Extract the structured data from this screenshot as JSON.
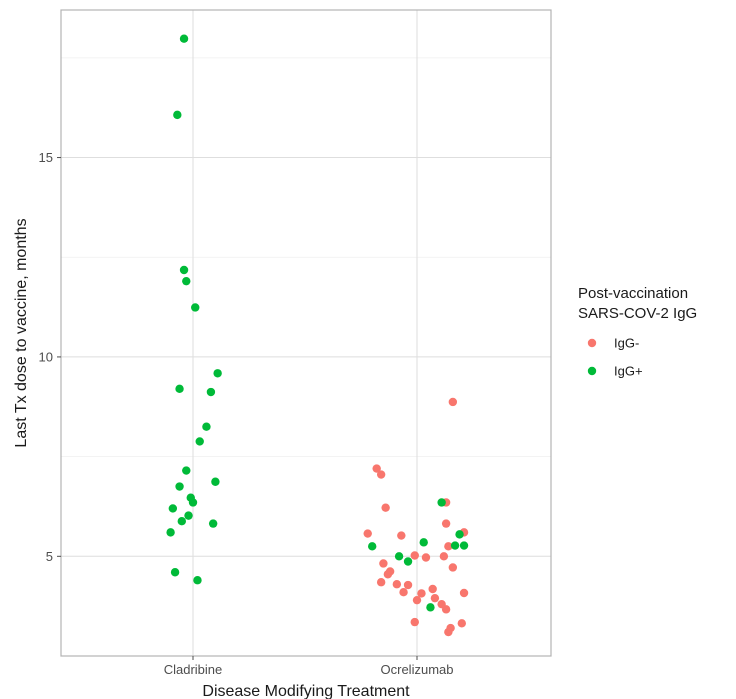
{
  "chart_data": {
    "type": "scatter",
    "xlabel": "Disease Modifying Treatment",
    "ylabel": "Last Tx dose to vaccine, months",
    "categories": [
      "Cladribine",
      "Ocrelizumab"
    ],
    "yticks": [
      5,
      10,
      15
    ],
    "ylim": [
      2.5,
      18.7
    ],
    "grid": true,
    "legend": {
      "position": "right",
      "title_lines": [
        "Post-vaccination",
        "SARS-COV-2 IgG"
      ]
    },
    "series": [
      {
        "name": "IgG-",
        "color": "#F8766D",
        "points": [
          {
            "category": "Ocrelizumab",
            "jitter": 0.16,
            "y": 8.87
          },
          {
            "category": "Ocrelizumab",
            "jitter": -0.18,
            "y": 7.2
          },
          {
            "category": "Ocrelizumab",
            "jitter": -0.16,
            "y": 7.05
          },
          {
            "category": "Ocrelizumab",
            "jitter": 0.13,
            "y": 6.35
          },
          {
            "category": "Ocrelizumab",
            "jitter": -0.14,
            "y": 6.22
          },
          {
            "category": "Ocrelizumab",
            "jitter": 0.13,
            "y": 5.82
          },
          {
            "category": "Ocrelizumab",
            "jitter": -0.22,
            "y": 5.57
          },
          {
            "category": "Ocrelizumab",
            "jitter": -0.07,
            "y": 5.52
          },
          {
            "category": "Ocrelizumab",
            "jitter": 0.21,
            "y": 5.6
          },
          {
            "category": "Ocrelizumab",
            "jitter": 0.14,
            "y": 5.25
          },
          {
            "category": "Ocrelizumab",
            "jitter": -0.01,
            "y": 5.02
          },
          {
            "category": "Ocrelizumab",
            "jitter": 0.04,
            "y": 4.97
          },
          {
            "category": "Ocrelizumab",
            "jitter": 0.12,
            "y": 5.0
          },
          {
            "category": "Ocrelizumab",
            "jitter": -0.15,
            "y": 4.82
          },
          {
            "category": "Ocrelizumab",
            "jitter": 0.16,
            "y": 4.72
          },
          {
            "category": "Ocrelizumab",
            "jitter": -0.12,
            "y": 4.62
          },
          {
            "category": "Ocrelizumab",
            "jitter": -0.13,
            "y": 4.55
          },
          {
            "category": "Ocrelizumab",
            "jitter": -0.16,
            "y": 4.35
          },
          {
            "category": "Ocrelizumab",
            "jitter": -0.09,
            "y": 4.3
          },
          {
            "category": "Ocrelizumab",
            "jitter": -0.04,
            "y": 4.28
          },
          {
            "category": "Ocrelizumab",
            "jitter": 0.07,
            "y": 4.18
          },
          {
            "category": "Ocrelizumab",
            "jitter": -0.06,
            "y": 4.1
          },
          {
            "category": "Ocrelizumab",
            "jitter": 0.02,
            "y": 4.07
          },
          {
            "category": "Ocrelizumab",
            "jitter": 0.21,
            "y": 4.08
          },
          {
            "category": "Ocrelizumab",
            "jitter": 0.08,
            "y": 3.95
          },
          {
            "category": "Ocrelizumab",
            "jitter": 0.0,
            "y": 3.9
          },
          {
            "category": "Ocrelizumab",
            "jitter": 0.11,
            "y": 3.8
          },
          {
            "category": "Ocrelizumab",
            "jitter": 0.13,
            "y": 3.67
          },
          {
            "category": "Ocrelizumab",
            "jitter": -0.01,
            "y": 3.35
          },
          {
            "category": "Ocrelizumab",
            "jitter": 0.2,
            "y": 3.32
          },
          {
            "category": "Ocrelizumab",
            "jitter": 0.15,
            "y": 3.2
          },
          {
            "category": "Ocrelizumab",
            "jitter": 0.14,
            "y": 3.1
          }
        ]
      },
      {
        "name": "IgG+",
        "color": "#00BA38",
        "points": [
          {
            "category": "Cladribine",
            "jitter": -0.04,
            "y": 17.98
          },
          {
            "category": "Cladribine",
            "jitter": -0.07,
            "y": 16.07
          },
          {
            "category": "Cladribine",
            "jitter": -0.04,
            "y": 12.18
          },
          {
            "category": "Cladribine",
            "jitter": -0.03,
            "y": 11.9
          },
          {
            "category": "Cladribine",
            "jitter": 0.01,
            "y": 11.24
          },
          {
            "category": "Cladribine",
            "jitter": 0.11,
            "y": 9.59
          },
          {
            "category": "Cladribine",
            "jitter": -0.06,
            "y": 9.2
          },
          {
            "category": "Cladribine",
            "jitter": 0.08,
            "y": 9.12
          },
          {
            "category": "Cladribine",
            "jitter": 0.06,
            "y": 8.25
          },
          {
            "category": "Cladribine",
            "jitter": 0.03,
            "y": 7.88
          },
          {
            "category": "Cladribine",
            "jitter": -0.03,
            "y": 7.15
          },
          {
            "category": "Cladribine",
            "jitter": 0.1,
            "y": 6.87
          },
          {
            "category": "Cladribine",
            "jitter": -0.06,
            "y": 6.75
          },
          {
            "category": "Cladribine",
            "jitter": -0.01,
            "y": 6.47
          },
          {
            "category": "Cladribine",
            "jitter": 0.0,
            "y": 6.35
          },
          {
            "category": "Cladribine",
            "jitter": -0.09,
            "y": 6.2
          },
          {
            "category": "Cladribine",
            "jitter": -0.02,
            "y": 6.02
          },
          {
            "category": "Cladribine",
            "jitter": -0.05,
            "y": 5.88
          },
          {
            "category": "Cladribine",
            "jitter": 0.09,
            "y": 5.82
          },
          {
            "category": "Cladribine",
            "jitter": -0.1,
            "y": 5.6
          },
          {
            "category": "Cladribine",
            "jitter": -0.08,
            "y": 4.6
          },
          {
            "category": "Cladribine",
            "jitter": 0.02,
            "y": 4.4
          },
          {
            "category": "Ocrelizumab",
            "jitter": 0.11,
            "y": 6.35
          },
          {
            "category": "Ocrelizumab",
            "jitter": 0.19,
            "y": 5.55
          },
          {
            "category": "Ocrelizumab",
            "jitter": 0.03,
            "y": 5.35
          },
          {
            "category": "Ocrelizumab",
            "jitter": -0.2,
            "y": 5.25
          },
          {
            "category": "Ocrelizumab",
            "jitter": 0.17,
            "y": 5.27
          },
          {
            "category": "Ocrelizumab",
            "jitter": 0.21,
            "y": 5.27
          },
          {
            "category": "Ocrelizumab",
            "jitter": -0.08,
            "y": 5.0
          },
          {
            "category": "Ocrelizumab",
            "jitter": -0.04,
            "y": 4.87
          },
          {
            "category": "Ocrelizumab",
            "jitter": 0.06,
            "y": 3.72
          }
        ]
      }
    ]
  }
}
